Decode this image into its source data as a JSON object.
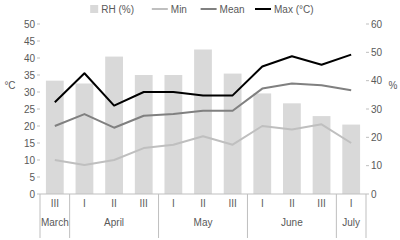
{
  "chart_data": {
    "type": "bar",
    "y_label": "°C",
    "y2_label": "%",
    "categories": [
      "III",
      "I",
      "II",
      "III",
      "I",
      "II",
      "III",
      "I",
      "II",
      "III",
      "I"
    ],
    "x_groups": [
      {
        "label": "March",
        "count": 1
      },
      {
        "label": "April",
        "count": 3
      },
      {
        "label": "May",
        "count": 3
      },
      {
        "label": "June",
        "count": 3
      },
      {
        "label": "July",
        "count": 1
      }
    ],
    "series": [
      {
        "name": "RH (%)",
        "type": "bar",
        "axis": "y2",
        "color": "#d9d9d9",
        "values": [
          40,
          39,
          48.5,
          42,
          42,
          51,
          42.5,
          35.5,
          32,
          27.5,
          24.5
        ]
      },
      {
        "name": "Min",
        "type": "line",
        "color": "#bfbfbf",
        "values": [
          10,
          8.5,
          10,
          13.5,
          14.5,
          17,
          14.5,
          20,
          19,
          20.5,
          15
        ]
      },
      {
        "name": "Mean",
        "type": "line",
        "color": "#808080",
        "values": [
          20,
          23.5,
          19.5,
          23,
          23.5,
          24.5,
          24.5,
          31,
          32.5,
          32,
          30.5
        ]
      },
      {
        "name": "Max (°C)",
        "type": "line",
        "color": "#000000",
        "values": [
          27,
          35.5,
          26,
          30,
          30,
          29,
          29,
          37.5,
          40.5,
          38,
          41
        ]
      }
    ],
    "ylim": [
      0,
      50
    ],
    "yticks": [
      0,
      5,
      10,
      15,
      20,
      25,
      30,
      35,
      40,
      45,
      50
    ],
    "y2lim": [
      0,
      60
    ],
    "y2ticks": [
      0,
      10,
      20,
      30,
      40,
      50,
      60
    ],
    "legend": "top",
    "grid": false
  }
}
